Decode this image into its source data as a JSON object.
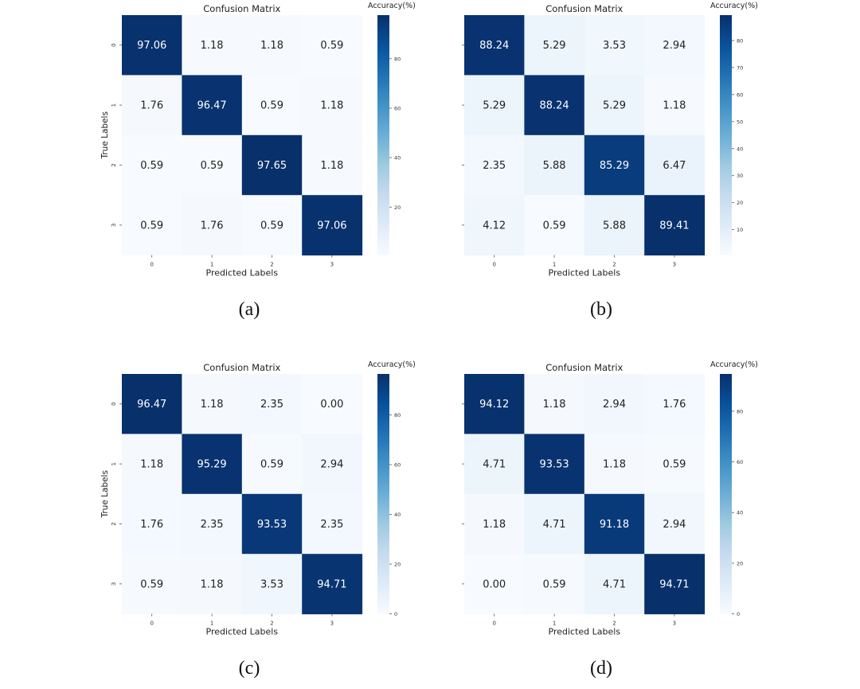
{
  "chart_data": [
    {
      "type": "heatmap",
      "panel_label": "(a)",
      "title": "Confusion Matrix",
      "xlabel": "Predicted Labels",
      "ylabel": "True Labels",
      "x_ticks": [
        "0",
        "1",
        "2",
        "3"
      ],
      "y_ticks": [
        "0",
        "1",
        "2",
        "3"
      ],
      "values": [
        [
          97.06,
          1.18,
          1.18,
          0.59
        ],
        [
          1.76,
          96.47,
          0.59,
          1.18
        ],
        [
          0.59,
          0.59,
          97.65,
          1.18
        ],
        [
          0.59,
          1.76,
          0.59,
          97.06
        ]
      ],
      "colorbar": {
        "label": "Accuracy(%)",
        "ticks": [
          "20",
          "40",
          "60",
          "80"
        ],
        "tick_values": [
          20,
          40,
          60,
          80
        ],
        "vmin": 0.59,
        "vmax": 97.65,
        "colormap": "Blues"
      }
    },
    {
      "type": "heatmap",
      "panel_label": "(b)",
      "title": "Confusion Matrix",
      "xlabel": "Predicted Labels",
      "ylabel": "",
      "x_ticks": [
        "0",
        "1",
        "2",
        "3"
      ],
      "y_ticks": [
        "",
        "",
        "",
        ""
      ],
      "values": [
        [
          88.24,
          5.29,
          3.53,
          2.94
        ],
        [
          5.29,
          88.24,
          5.29,
          1.18
        ],
        [
          2.35,
          5.88,
          85.29,
          6.47
        ],
        [
          4.12,
          0.59,
          5.88,
          89.41
        ]
      ],
      "colorbar": {
        "label": "Accuracy(%)",
        "ticks": [
          "10",
          "20",
          "30",
          "40",
          "50",
          "60",
          "70",
          "80"
        ],
        "tick_values": [
          10,
          20,
          30,
          40,
          50,
          60,
          70,
          80
        ],
        "vmin": 0.59,
        "vmax": 89.41,
        "colormap": "Blues"
      }
    },
    {
      "type": "heatmap",
      "panel_label": "(c)",
      "title": "Confusion Matrix",
      "xlabel": "Predicted Labels",
      "ylabel": "True Labels",
      "x_ticks": [
        "0",
        "1",
        "2",
        "3"
      ],
      "y_ticks": [
        "0",
        "1",
        "2",
        "3"
      ],
      "values": [
        [
          96.47,
          1.18,
          2.35,
          0.0
        ],
        [
          1.18,
          95.29,
          0.59,
          2.94
        ],
        [
          1.76,
          2.35,
          93.53,
          2.35
        ],
        [
          0.59,
          1.18,
          3.53,
          94.71
        ]
      ],
      "colorbar": {
        "label": "Accuracy(%)",
        "ticks": [
          "0",
          "20",
          "40",
          "60",
          "80"
        ],
        "tick_values": [
          0,
          20,
          40,
          60,
          80
        ],
        "vmin": 0,
        "vmax": 96.47,
        "colormap": "Blues"
      }
    },
    {
      "type": "heatmap",
      "panel_label": "(d)",
      "title": "Confusion Matrix",
      "xlabel": "Predicted Labels",
      "ylabel": "",
      "x_ticks": [
        "0",
        "1",
        "2",
        "3"
      ],
      "y_ticks": [
        "",
        "",
        "",
        ""
      ],
      "values": [
        [
          94.12,
          1.18,
          2.94,
          1.76
        ],
        [
          4.71,
          93.53,
          1.18,
          0.59
        ],
        [
          1.18,
          4.71,
          91.18,
          2.94
        ],
        [
          0.0,
          0.59,
          4.71,
          94.71
        ]
      ],
      "colorbar": {
        "label": "Accuracy(%)",
        "ticks": [
          "0",
          "20",
          "40",
          "60",
          "80"
        ],
        "tick_values": [
          0,
          20,
          40,
          60,
          80
        ],
        "vmin": 0,
        "vmax": 94.71,
        "colormap": "Blues"
      }
    }
  ]
}
